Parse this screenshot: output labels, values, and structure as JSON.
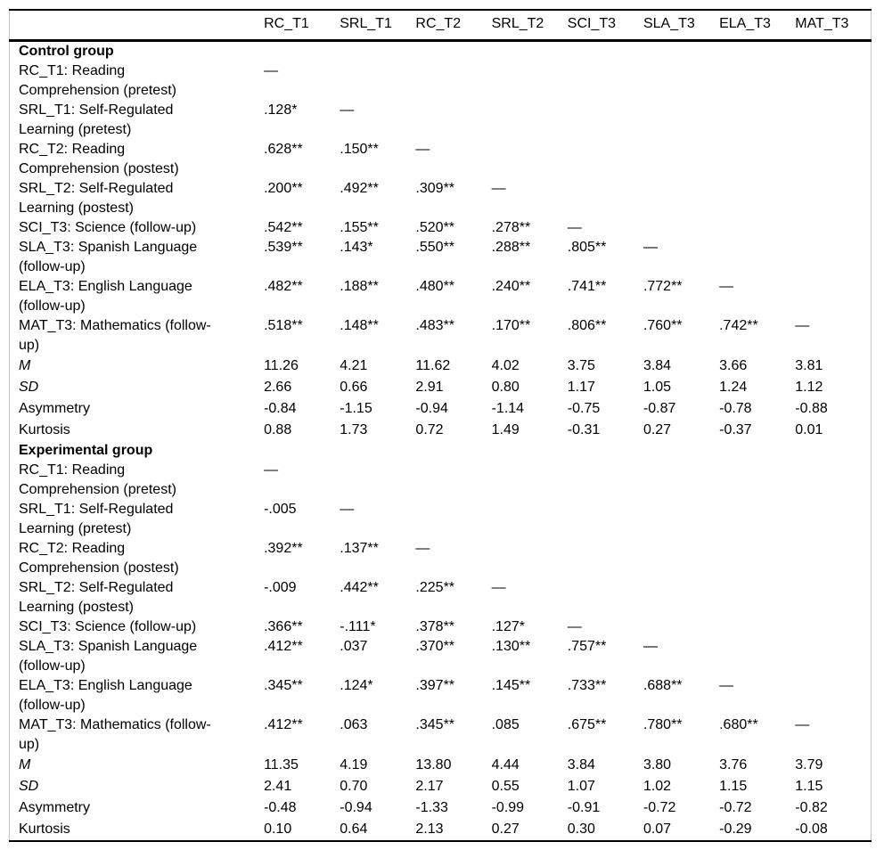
{
  "table": {
    "columns": [
      "RC_T1",
      "SRL_T1",
      "RC_T2",
      "SRL_T2",
      "SCI_T3",
      "SLA_T3",
      "ELA_T3",
      "MAT_T3"
    ],
    "dash": "—",
    "sections": [
      {
        "title": "Control group",
        "rows": [
          {
            "label": "RC_T1: Reading Comprehension (pretest)",
            "kind": "variable",
            "italic": false,
            "values": [
              "—",
              "",
              "",
              "",
              "",
              "",
              "",
              ""
            ]
          },
          {
            "label": "SRL_T1: Self-Regulated Learning (pretest)",
            "kind": "variable",
            "italic": false,
            "values": [
              ".128*",
              "—",
              "",
              "",
              "",
              "",
              "",
              ""
            ]
          },
          {
            "label": "RC_T2: Reading Comprehension (postest)",
            "kind": "variable",
            "italic": false,
            "values": [
              ".628**",
              ".150**",
              "—",
              "",
              "",
              "",
              "",
              ""
            ]
          },
          {
            "label": "SRL_T2: Self-Regulated Learning (postest)",
            "kind": "variable",
            "italic": false,
            "values": [
              ".200**",
              ".492**",
              ".309**",
              "—",
              "",
              "",
              "",
              ""
            ]
          },
          {
            "label": "SCI_T3: Science (follow-up)",
            "kind": "variable",
            "italic": false,
            "values": [
              ".542**",
              ".155**",
              ".520**",
              ".278**",
              "—",
              "",
              "",
              ""
            ]
          },
          {
            "label": "SLA_T3: Spanish Language (follow-up)",
            "kind": "variable",
            "italic": false,
            "values": [
              ".539**",
              ".143*",
              ".550**",
              ".288**",
              ".805**",
              "—",
              "",
              ""
            ]
          },
          {
            "label": "ELA_T3: English Language (follow-up)",
            "kind": "variable",
            "italic": false,
            "values": [
              ".482**",
              ".188**",
              ".480**",
              ".240**",
              ".741**",
              ".772**",
              "—",
              ""
            ]
          },
          {
            "label": "MAT_T3: Mathematics (follow-up)",
            "kind": "variable",
            "italic": false,
            "values": [
              ".518**",
              ".148**",
              ".483**",
              ".170**",
              ".806**",
              ".760**",
              ".742**",
              "—"
            ]
          },
          {
            "label": "M",
            "kind": "stat",
            "italic": true,
            "values": [
              "11.26",
              "4.21",
              "11.62",
              "4.02",
              "3.75",
              "3.84",
              "3.66",
              "3.81"
            ]
          },
          {
            "label": "SD",
            "kind": "stat",
            "italic": true,
            "values": [
              "2.66",
              "0.66",
              "2.91",
              "0.80",
              "1.17",
              "1.05",
              "1.24",
              "1.12"
            ]
          },
          {
            "label": "Asymmetry",
            "kind": "stat",
            "italic": false,
            "values": [
              "-0.84",
              "-1.15",
              "-0.94",
              "-1.14",
              "-0.75",
              "-0.87",
              "-0.78",
              "-0.88"
            ]
          },
          {
            "label": "Kurtosis",
            "kind": "stat",
            "italic": false,
            "values": [
              "0.88",
              "1.73",
              "0.72",
              "1.49",
              "-0.31",
              "0.27",
              "-0.37",
              "0.01"
            ]
          }
        ]
      },
      {
        "title": "Experimental group",
        "rows": [
          {
            "label": "RC_T1: Reading Comprehension (pretest)",
            "kind": "variable",
            "italic": false,
            "values": [
              "—",
              "",
              "",
              "",
              "",
              "",
              "",
              ""
            ]
          },
          {
            "label": "SRL_T1: Self-Regulated Learning (pretest)",
            "kind": "variable",
            "italic": false,
            "values": [
              "-.005",
              "—",
              "",
              "",
              "",
              "",
              "",
              ""
            ]
          },
          {
            "label": "RC_T2: Reading Comprehension (postest)",
            "kind": "variable",
            "italic": false,
            "values": [
              ".392**",
              ".137**",
              "—",
              "",
              "",
              "",
              "",
              ""
            ]
          },
          {
            "label": "SRL_T2: Self-Regulated Learning (postest)",
            "kind": "variable",
            "italic": false,
            "values": [
              "-.009",
              ".442**",
              ".225**",
              "—",
              "",
              "",
              "",
              ""
            ]
          },
          {
            "label": "SCI_T3: Science (follow-up)",
            "kind": "variable",
            "italic": false,
            "values": [
              ".366**",
              "-.111*",
              ".378**",
              ".127*",
              "—",
              "",
              "",
              ""
            ]
          },
          {
            "label": "SLA_T3: Spanish Language (follow-up)",
            "kind": "variable",
            "italic": false,
            "values": [
              ".412**",
              ".037",
              ".370**",
              ".130**",
              ".757**",
              "—",
              "",
              ""
            ]
          },
          {
            "label": "ELA_T3: English Language (follow-up)",
            "kind": "variable",
            "italic": false,
            "values": [
              ".345**",
              ".124*",
              ".397**",
              ".145**",
              ".733**",
              ".688**",
              "—",
              ""
            ]
          },
          {
            "label": "MAT_T3: Mathematics (follow-up)",
            "kind": "variable",
            "italic": false,
            "values": [
              ".412**",
              ".063",
              ".345**",
              ".085",
              ".675**",
              ".780**",
              ".680**",
              "—"
            ]
          },
          {
            "label": "M",
            "kind": "stat",
            "italic": true,
            "values": [
              "11.35",
              "4.19",
              "13.80",
              "4.44",
              "3.84",
              "3.80",
              "3.76",
              "3.79"
            ]
          },
          {
            "label": "SD",
            "kind": "stat",
            "italic": true,
            "values": [
              "2.41",
              "0.70",
              "2.17",
              "0.55",
              "1.07",
              "1.02",
              "1.15",
              "1.15"
            ]
          },
          {
            "label": "Asymmetry",
            "kind": "stat",
            "italic": false,
            "values": [
              "-0.48",
              "-0.94",
              "-1.33",
              "-0.99",
              "-0.91",
              "-0.72",
              "-0.72",
              "-0.82"
            ]
          },
          {
            "label": "Kurtosis",
            "kind": "stat",
            "italic": false,
            "values": [
              "0.10",
              "0.64",
              "2.13",
              "0.27",
              "0.30",
              "0.07",
              "-0.29",
              "-0.08"
            ]
          }
        ]
      }
    ]
  }
}
